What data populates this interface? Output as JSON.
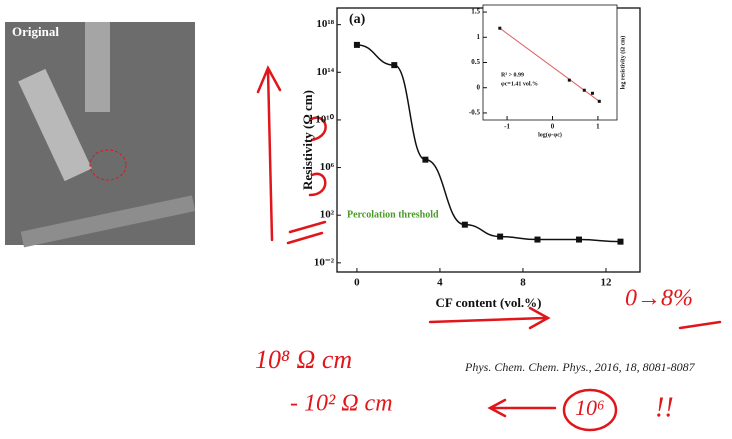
{
  "image_label": "Original",
  "citation": "Phys. Chem. Chem. Phys., 2016, 18, 8081-8087",
  "handwriting": [
    "10⁸ Ω cm",
    "- 10² Ω cm",
    "0→8%",
    "10⁶",
    "!!"
  ],
  "chart_data": [
    {
      "type": "line",
      "title": "(a)",
      "x_label": "CF content (vol.%)",
      "y_label": "Resistivity (Ω cm)",
      "annotation": "Percolation threshold",
      "log_y": true,
      "color": "#111111",
      "line_color": "#111111",
      "x": [
        0,
        1.8,
        3.3,
        5.2,
        6.9,
        8.7,
        10.7,
        12.7
      ],
      "values": [
        2e+16,
        400000000000000.0,
        4600000.0,
        16,
        1.6,
        0.9,
        0.9,
        0.6
      ],
      "xlim": [
        -0.96,
        13.64
      ],
      "xticks": [
        0,
        4,
        8,
        12
      ],
      "ylim": [
        0.0017,
        2.5e+19
      ],
      "yticks": [
        {
          "value": 0.01,
          "label": "10⁻²"
        },
        {
          "value": 100,
          "label": "10²"
        },
        {
          "value": 1000000,
          "label": "10⁶"
        },
        {
          "value": 10000000000,
          "label": "10¹⁰"
        },
        {
          "value": 100000000000000,
          "label": "10¹⁴"
        },
        {
          "value": 1000000000000000000,
          "label": "10¹⁸"
        }
      ]
    },
    {
      "type": "scatter",
      "x_label": "log(φ-φc)",
      "y_label": "log resistivity (Ω cm)",
      "annotations": [
        "R² > 0.99",
        "φc=1.41 vol.%"
      ],
      "color": "#111111",
      "fit_color": "#e06060",
      "x": [
        -1.16,
        0.37,
        0.7,
        0.88,
        1.03
      ],
      "values": [
        1.18,
        0.15,
        -0.05,
        -0.11,
        -0.27
      ],
      "xlim": [
        -1.53,
        1.42
      ],
      "xticks": [
        -1,
        0,
        1
      ],
      "ylim": [
        -0.64,
        1.64
      ],
      "yticks": [
        -0.5,
        0.0,
        0.5,
        1.0,
        1.5
      ]
    }
  ]
}
